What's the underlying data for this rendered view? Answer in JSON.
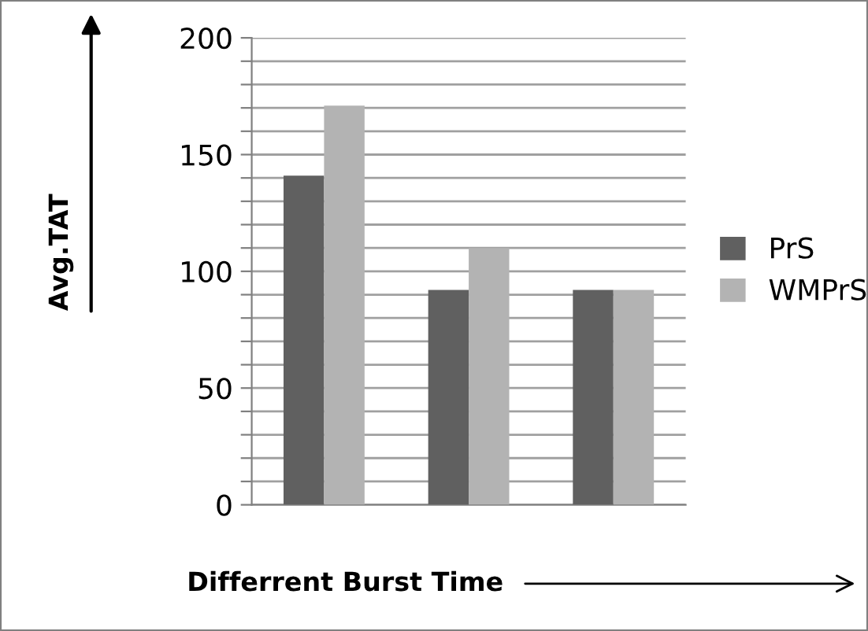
{
  "chart_data": {
    "type": "bar",
    "xlabel": "Differrent Burst Time",
    "ylabel": "Avg.TAT",
    "categories": [
      null,
      null,
      null
    ],
    "series": [
      {
        "name": "PrS",
        "color": "#606060",
        "values": [
          141,
          92,
          92
        ]
      },
      {
        "name": "WMPrS",
        "color": "#b3b3b3",
        "values": [
          171,
          110,
          92
        ]
      }
    ],
    "ylim": [
      0,
      200
    ],
    "yticks": [
      0,
      {
        "value": 10,
        "label": null
      },
      {
        "value": 20,
        "label": null
      },
      {
        "value": 30,
        "label": null
      },
      {
        "value": 40,
        "label": null
      },
      50,
      {
        "value": 60,
        "label": null
      },
      {
        "value": 70,
        "label": null
      },
      {
        "value": 80,
        "label": null
      },
      {
        "value": 90,
        "label": null
      },
      100,
      {
        "value": 110,
        "label": null
      },
      {
        "value": 120,
        "label": null
      },
      {
        "value": 130,
        "label": null
      },
      {
        "value": 140,
        "label": null
      },
      150,
      {
        "value": 160,
        "label": null
      },
      {
        "value": 170,
        "label": null
      },
      {
        "value": 180,
        "label": null
      },
      {
        "value": 190,
        "label": null
      },
      200
    ],
    "grid": "y",
    "legend": "right"
  }
}
